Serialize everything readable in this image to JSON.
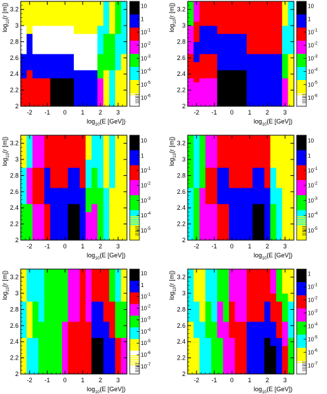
{
  "palette": [
    "#ffffff",
    "#ffff00",
    "#00ffff",
    "#00ff00",
    "#ff00ff",
    "#ff0000",
    "#0000ff",
    "#000000"
  ],
  "chart_data": [
    {
      "type": "heatmap",
      "xlabel_main": "log",
      "xlabel_sub": "10",
      "xlabel_rest": "(E [GeV])",
      "ylabel_main": "log",
      "ylabel_sub": "10",
      "ylabel_rest": "(r [m])",
      "xlim": [
        -2.5,
        3.5
      ],
      "ylim": [
        2.0,
        3.3
      ],
      "xticks": [
        "-2",
        "-1",
        "0",
        "1",
        "2",
        "3"
      ],
      "yticks": [
        "2",
        "2.2",
        "2.4",
        "2.6",
        "2.8",
        "3",
        "3.2"
      ],
      "colorbar": [
        {
          "base": "10",
          "exp": ""
        },
        {
          "base": "1",
          "exp": ""
        },
        {
          "base": "10",
          "exp": "-1"
        },
        {
          "base": "10",
          "exp": "-2"
        },
        {
          "base": "10",
          "exp": "-3"
        },
        {
          "base": "10",
          "exp": "-4"
        },
        {
          "base": "10",
          "exp": "-5"
        },
        {
          "base": "10",
          "exp": "-6"
        }
      ],
      "columns": [
        [
          5,
          6,
          0,
          1
        ],
        [
          5,
          6,
          1
        ],
        [
          5,
          6,
          0,
          1
        ],
        [
          5,
          6,
          0,
          1
        ],
        [
          5,
          6,
          0,
          1
        ],
        [
          7,
          6,
          0,
          1
        ],
        [
          7,
          6,
          0,
          1
        ],
        [
          7,
          6,
          0,
          1
        ],
        [
          7,
          6,
          0,
          1
        ],
        [
          6,
          0,
          1
        ],
        [
          6,
          0,
          1
        ],
        [
          6,
          0,
          1
        ],
        [
          6,
          0,
          1
        ],
        [
          4,
          3,
          2,
          1
        ],
        [
          1,
          3,
          2
        ],
        [
          2,
          3,
          1
        ],
        [
          1,
          2,
          3
        ],
        [
          1,
          2
        ]
      ]
    },
    {
      "type": "heatmap",
      "xlabel_main": "log",
      "xlabel_sub": "10",
      "xlabel_rest": "(E [GeV])",
      "ylabel_main": "log",
      "ylabel_sub": "10",
      "ylabel_rest": "(r [m])",
      "xlim": [
        -2.5,
        3.5
      ],
      "ylim": [
        2.0,
        3.3
      ],
      "xticks": [
        "-2",
        "-1",
        "0",
        "1",
        "2",
        "3"
      ],
      "yticks": [
        "2",
        "2.2",
        "2.4",
        "2.6",
        "2.8",
        "3",
        "3.2"
      ],
      "colorbar": [
        {
          "base": "10",
          "exp": ""
        },
        {
          "base": "1",
          "exp": ""
        },
        {
          "base": "10",
          "exp": "-1"
        },
        {
          "base": "10",
          "exp": "-2"
        },
        {
          "base": "10",
          "exp": "-3"
        },
        {
          "base": "10",
          "exp": "-4"
        },
        {
          "base": "10",
          "exp": "-5"
        },
        {
          "base": "10",
          "exp": "-6"
        }
      ],
      "columns": [
        [
          4,
          5,
          4,
          3
        ],
        [
          4,
          5,
          6,
          5,
          4
        ],
        [
          4,
          5,
          6,
          5
        ],
        [
          4,
          5,
          6,
          5
        ],
        [
          4,
          5,
          6,
          5
        ],
        [
          7,
          6,
          5
        ],
        [
          7,
          6,
          5
        ],
        [
          7,
          6,
          5
        ],
        [
          7,
          6,
          5
        ],
        [
          7,
          6,
          5
        ],
        [
          6,
          5
        ],
        [
          6,
          5
        ],
        [
          6,
          5
        ],
        [
          6,
          5
        ],
        [
          6,
          5
        ],
        [
          6,
          5
        ],
        [
          4,
          3,
          2,
          1
        ],
        [
          1,
          2
        ]
      ]
    },
    {
      "type": "heatmap",
      "xlabel_main": "log",
      "xlabel_sub": "10",
      "xlabel_rest": "(E [GeV])",
      "ylabel_main": "log",
      "ylabel_sub": "10",
      "ylabel_rest": "(r [m])",
      "xlim": [
        -2.5,
        3.5
      ],
      "ylim": [
        2.0,
        3.3
      ],
      "xticks": [
        "-2",
        "-1",
        "0",
        "1",
        "2",
        "3"
      ],
      "yticks": [
        "2",
        "2.2",
        "2.4",
        "2.6",
        "2.8",
        "3",
        "3.2"
      ],
      "colorbar": [
        {
          "base": "10",
          "exp": ""
        },
        {
          "base": "1",
          "exp": ""
        },
        {
          "base": "10",
          "exp": "-1"
        },
        {
          "base": "10",
          "exp": "-2"
        },
        {
          "base": "10",
          "exp": "-3"
        },
        {
          "base": "10",
          "exp": "-4"
        },
        {
          "base": "10",
          "exp": "-5"
        }
      ],
      "columns": [
        [
          3,
          2,
          1
        ],
        [
          3,
          4,
          2
        ],
        [
          4,
          5,
          4
        ],
        [
          4,
          5,
          4
        ],
        [
          5,
          6,
          5
        ],
        [
          6,
          5
        ],
        [
          6,
          5
        ],
        [
          6,
          5
        ],
        [
          7,
          6,
          5
        ],
        [
          7,
          6,
          5
        ],
        [
          6,
          5
        ],
        [
          4,
          3,
          2,
          1
        ],
        [
          4,
          3,
          2
        ],
        [
          3,
          2
        ],
        [
          2,
          1
        ],
        [
          1,
          2
        ],
        [
          1
        ],
        [
          1
        ]
      ]
    },
    {
      "type": "heatmap",
      "xlabel_main": "log",
      "xlabel_sub": "10",
      "xlabel_rest": "(E [GeV])",
      "ylabel_main": "log",
      "ylabel_sub": "10",
      "ylabel_rest": "(r [m])",
      "xlim": [
        -2.5,
        3.5
      ],
      "ylim": [
        2.0,
        3.3
      ],
      "xticks": [
        "-2",
        "-1",
        "0",
        "1",
        "2",
        "3"
      ],
      "yticks": [
        "2",
        "2.2",
        "2.4",
        "2.6",
        "2.8",
        "3",
        "3.2"
      ],
      "colorbar": [
        {
          "base": "10",
          "exp": ""
        },
        {
          "base": "1",
          "exp": ""
        },
        {
          "base": "10",
          "exp": "-1"
        },
        {
          "base": "10",
          "exp": "-2"
        },
        {
          "base": "10",
          "exp": "-3"
        },
        {
          "base": "10",
          "exp": "-4"
        },
        {
          "base": "10",
          "exp": "-5"
        }
      ],
      "columns": [
        [
          2,
          3
        ],
        [
          3,
          2
        ],
        [
          4,
          3
        ],
        [
          4,
          5,
          4
        ],
        [
          4,
          5,
          4
        ],
        [
          5,
          6,
          5
        ],
        [
          5,
          6,
          5
        ],
        [
          6,
          5
        ],
        [
          6,
          5
        ],
        [
          6,
          5
        ],
        [
          6,
          5
        ],
        [
          7,
          6,
          5
        ],
        [
          7,
          6,
          5
        ],
        [
          6,
          5
        ],
        [
          3,
          2,
          1
        ],
        [
          2,
          1
        ],
        [
          1
        ],
        [
          1
        ]
      ]
    },
    {
      "type": "heatmap",
      "xlabel_main": "log",
      "xlabel_sub": "10",
      "xlabel_rest": "(E [GeV])",
      "ylabel_main": "log",
      "ylabel_sub": "10",
      "ylabel_rest": "(r [m])",
      "xlim": [
        -2.5,
        3.5
      ],
      "ylim": [
        2.0,
        3.3
      ],
      "xticks": [
        "-2",
        "-1",
        "0",
        "1",
        "2",
        "3"
      ],
      "yticks": [
        "2",
        "2.2",
        "2.4",
        "2.6",
        "2.8",
        "3",
        "3.2"
      ],
      "colorbar": [
        {
          "base": "10",
          "exp": ""
        },
        {
          "base": "1",
          "exp": ""
        },
        {
          "base": "10",
          "exp": "-1"
        },
        {
          "base": "10",
          "exp": "-2"
        },
        {
          "base": "10",
          "exp": "-3"
        },
        {
          "base": "10",
          "exp": "-4"
        },
        {
          "base": "10",
          "exp": "-5"
        },
        {
          "base": "10",
          "exp": "-6"
        },
        {
          "base": "10",
          "exp": "-7"
        }
      ],
      "columns": [
        [
          1,
          2,
          1
        ],
        [
          2,
          1,
          2
        ],
        [
          2,
          3,
          2
        ],
        [
          3,
          2
        ],
        [
          3
        ],
        [
          3
        ],
        [
          3
        ],
        [
          4,
          3
        ],
        [
          5,
          4
        ],
        [
          5,
          4
        ],
        [
          5
        ],
        [
          5,
          4
        ],
        [
          7,
          6,
          5
        ],
        [
          7,
          6,
          5
        ],
        [
          6,
          5
        ],
        [
          6,
          5,
          3
        ],
        [
          5,
          3,
          2
        ],
        [
          4,
          3,
          1
        ]
      ]
    },
    {
      "type": "heatmap",
      "xlabel_main": "log",
      "xlabel_sub": "10",
      "xlabel_rest": "(E [GeV])",
      "ylabel_main": "log",
      "ylabel_sub": "10",
      "ylabel_rest": "(r [m])",
      "xlim": [
        -2.5,
        3.5
      ],
      "ylim": [
        2.0,
        3.3
      ],
      "xticks": [
        "-2",
        "-1",
        "0",
        "1",
        "2",
        "3"
      ],
      "yticks": [
        "2",
        "2.2",
        "2.4",
        "2.6",
        "2.8",
        "3",
        "3.2"
      ],
      "colorbar": [
        {
          "base": "1",
          "exp": ""
        },
        {
          "base": "10",
          "exp": "-1"
        },
        {
          "base": "10",
          "exp": "-2"
        },
        {
          "base": "10",
          "exp": "-3"
        },
        {
          "base": "10",
          "exp": "-4"
        },
        {
          "base": "10",
          "exp": "-5"
        },
        {
          "base": "10",
          "exp": "-6"
        },
        {
          "base": "10",
          "exp": "-7"
        }
      ],
      "columns": [
        [
          1,
          2
        ],
        [
          1,
          2,
          1
        ],
        [
          2,
          1
        ],
        [
          2,
          3,
          2
        ],
        [
          3,
          2
        ],
        [
          3,
          4,
          3
        ],
        [
          4,
          3
        ],
        [
          4,
          5,
          4
        ],
        [
          5,
          4
        ],
        [
          5,
          4
        ],
        [
          6,
          5
        ],
        [
          6,
          5
        ],
        [
          6,
          5
        ],
        [
          7,
          6,
          5
        ],
        [
          7,
          6,
          5,
          4
        ],
        [
          6,
          5,
          3
        ],
        [
          5,
          4,
          3,
          1
        ],
        [
          3,
          2,
          1
        ]
      ]
    }
  ]
}
